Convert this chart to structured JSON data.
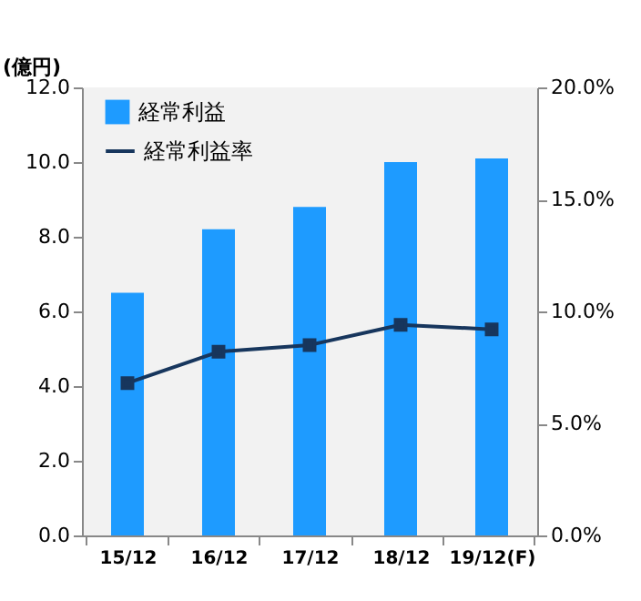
{
  "chart_data": {
    "type": "bar",
    "ylabel": "(億円)",
    "categories": [
      "15/12",
      "16/12",
      "17/12",
      "18/12",
      "19/12(F)"
    ],
    "series": [
      {
        "name": "経常利益",
        "color": "#1e9bff",
        "values": [
          6.5,
          8.2,
          8.8,
          10.0,
          10.1
        ]
      },
      {
        "name": "経常利益率",
        "type": "line",
        "axis": "y2",
        "color": "#17365d",
        "values": [
          6.8,
          8.2,
          8.5,
          9.4,
          9.2
        ]
      }
    ],
    "ylim": [
      0,
      12
    ],
    "yticks": [
      {
        "value": 0,
        "label": "0.0"
      },
      {
        "value": 2,
        "label": "2.0"
      },
      {
        "value": 4,
        "label": "4.0"
      },
      {
        "value": 6,
        "label": "6.0"
      },
      {
        "value": 8,
        "label": "8.0"
      },
      {
        "value": 10,
        "label": "10.0"
      },
      {
        "value": 12,
        "label": "12.0"
      }
    ],
    "y2lim": [
      0,
      20
    ],
    "y2ticks": [
      {
        "value": 0,
        "label": "0.0%"
      },
      {
        "value": 5,
        "label": "5.0%"
      },
      {
        "value": 10,
        "label": "10.0%"
      },
      {
        "value": 15,
        "label": "15.0%"
      },
      {
        "value": 20,
        "label": "20.0%"
      }
    ],
    "marker": "square",
    "legend": "top left"
  }
}
